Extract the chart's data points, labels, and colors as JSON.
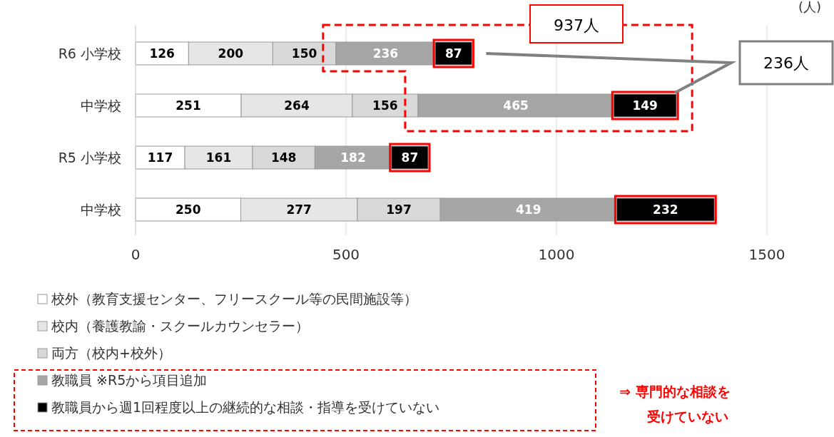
{
  "chart_data": {
    "type": "bar",
    "orientation": "horizontal",
    "stacked": true,
    "categories": [
      "R6  小学校",
      "中学校",
      "R5  小学校",
      "中学校"
    ],
    "series": [
      {
        "name": "校外（教育支援センター、フリースクール等の民間施設等）",
        "color": "#ffffff",
        "values": [
          126,
          251,
          117,
          250
        ]
      },
      {
        "name": "校内（養護教諭・スクールカウンセラー）",
        "color": "#e6e6e6",
        "values": [
          200,
          264,
          161,
          277
        ]
      },
      {
        "name": "両方（校内+校外）",
        "color": "#d9d9d9",
        "values": [
          150,
          156,
          148,
          197
        ]
      },
      {
        "name": "教職員  ※R5から項目追加",
        "color": "#a6a6a6",
        "values": [
          236,
          465,
          182,
          419
        ]
      },
      {
        "name": "教職員から週1回程度以上の継続的な相談・指導を受けていない",
        "color": "#000000",
        "values": [
          87,
          149,
          87,
          232
        ]
      }
    ],
    "xlim": [
      0,
      1500
    ],
    "xticks": [
      0,
      500,
      1000,
      1500
    ],
    "xlabel": "(人)",
    "grid": "x",
    "legend": "bottom",
    "data_labels": true,
    "annotations": [
      "937人",
      "236人",
      "⇒ 専門的な相談を受けていない"
    ]
  }
}
